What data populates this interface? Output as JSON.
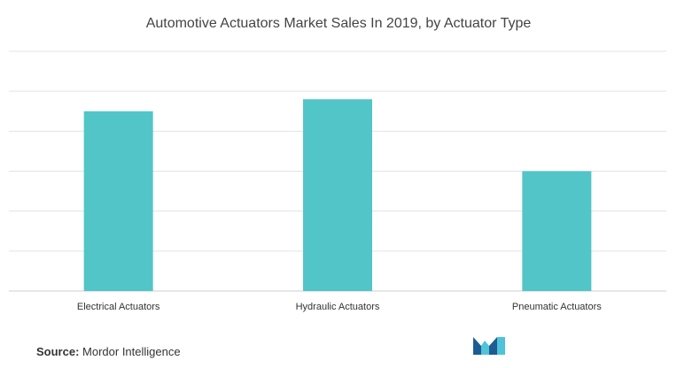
{
  "chart_data": {
    "type": "bar",
    "title": "Automotive Actuators Market Sales In 2019, by Actuator Type",
    "categories": [
      "Electrical Actuators",
      "Hydraulic Actuators",
      "Pneumatic Actuators"
    ],
    "values": [
      4.5,
      4.8,
      3.0
    ],
    "ylim": [
      0,
      6
    ],
    "grid": true,
    "bar_color": "#52c5c8",
    "xlabel": "",
    "ylabel": ""
  },
  "footer": {
    "source_label": "Source:",
    "source_value": "Mordor Intelligence",
    "logo": "mordor-intelligence-logo",
    "logo_colors": [
      "#1d5b93",
      "#4fc3d9"
    ]
  }
}
